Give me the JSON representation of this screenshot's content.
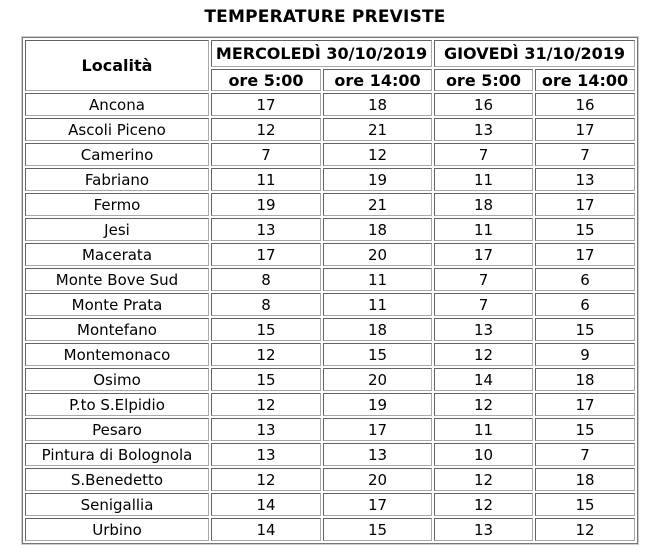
{
  "title": "TEMPERATURE PREVISTE",
  "table": {
    "locality_header": "Località",
    "day_headers": [
      "MERCOLEDÌ 30/10/2019",
      "GIOVEDÌ 31/10/2019"
    ],
    "time_headers": [
      "ore 5:00",
      "ore 14:00",
      "ore 5:00",
      "ore 14:00"
    ],
    "rows": [
      {
        "locality": "Ancona",
        "temps": [
          "17",
          "18",
          "16",
          "16"
        ]
      },
      {
        "locality": "Ascoli Piceno",
        "temps": [
          "12",
          "21",
          "13",
          "17"
        ]
      },
      {
        "locality": "Camerino",
        "temps": [
          "7",
          "12",
          "7",
          "7"
        ]
      },
      {
        "locality": "Fabriano",
        "temps": [
          "11",
          "19",
          "11",
          "13"
        ]
      },
      {
        "locality": "Fermo",
        "temps": [
          "19",
          "21",
          "18",
          "17"
        ]
      },
      {
        "locality": "Jesi",
        "temps": [
          "13",
          "18",
          "11",
          "15"
        ]
      },
      {
        "locality": "Macerata",
        "temps": [
          "17",
          "20",
          "17",
          "17"
        ]
      },
      {
        "locality": "Monte Bove Sud",
        "temps": [
          "8",
          "11",
          "7",
          "6"
        ]
      },
      {
        "locality": "Monte Prata",
        "temps": [
          "8",
          "11",
          "7",
          "6"
        ]
      },
      {
        "locality": "Montefano",
        "temps": [
          "15",
          "18",
          "13",
          "15"
        ]
      },
      {
        "locality": "Montemonaco",
        "temps": [
          "12",
          "15",
          "12",
          "9"
        ]
      },
      {
        "locality": "Osimo",
        "temps": [
          "15",
          "20",
          "14",
          "18"
        ]
      },
      {
        "locality": "P.to S.Elpidio",
        "temps": [
          "12",
          "19",
          "12",
          "17"
        ]
      },
      {
        "locality": "Pesaro",
        "temps": [
          "13",
          "17",
          "11",
          "15"
        ]
      },
      {
        "locality": "Pintura di Bolognola",
        "temps": [
          "13",
          "13",
          "10",
          "7"
        ]
      },
      {
        "locality": "S.Benedetto",
        "temps": [
          "12",
          "20",
          "12",
          "18"
        ]
      },
      {
        "locality": "Senigallia",
        "temps": [
          "14",
          "17",
          "12",
          "15"
        ]
      },
      {
        "locality": "Urbino",
        "temps": [
          "14",
          "15",
          "13",
          "12"
        ]
      }
    ]
  },
  "chart_data": {
    "type": "table",
    "title": "TEMPERATURE PREVISTE",
    "columns": [
      "Località",
      "MERCOLEDÌ 30/10/2019 ore 5:00",
      "MERCOLEDÌ 30/10/2019 ore 14:00",
      "GIOVEDÌ 31/10/2019 ore 5:00",
      "GIOVEDÌ 31/10/2019 ore 14:00"
    ],
    "rows": [
      [
        "Ancona",
        17,
        18,
        16,
        16
      ],
      [
        "Ascoli Piceno",
        12,
        21,
        13,
        17
      ],
      [
        "Camerino",
        7,
        12,
        7,
        7
      ],
      [
        "Fabriano",
        11,
        19,
        11,
        13
      ],
      [
        "Fermo",
        19,
        21,
        18,
        17
      ],
      [
        "Jesi",
        13,
        18,
        11,
        15
      ],
      [
        "Macerata",
        17,
        20,
        17,
        17
      ],
      [
        "Monte Bove Sud",
        8,
        11,
        7,
        6
      ],
      [
        "Monte Prata",
        8,
        11,
        7,
        6
      ],
      [
        "Montefano",
        15,
        18,
        13,
        15
      ],
      [
        "Montemonaco",
        12,
        15,
        12,
        9
      ],
      [
        "Osimo",
        15,
        20,
        14,
        18
      ],
      [
        "P.to S.Elpidio",
        12,
        19,
        12,
        17
      ],
      [
        "Pesaro",
        13,
        17,
        11,
        15
      ],
      [
        "Pintura di Bolognola",
        13,
        13,
        10,
        7
      ],
      [
        "S.Benedetto",
        12,
        20,
        12,
        18
      ],
      [
        "Senigallia",
        14,
        17,
        12,
        15
      ],
      [
        "Urbino",
        14,
        15,
        13,
        12
      ]
    ]
  },
  "colors": {
    "background": "#ffffff",
    "text": "#000000",
    "border_dark": "#636363",
    "border_light": "#a9a9a9",
    "outer_frame_dark": "#767676",
    "outer_frame_light": "#cdcdcd"
  }
}
